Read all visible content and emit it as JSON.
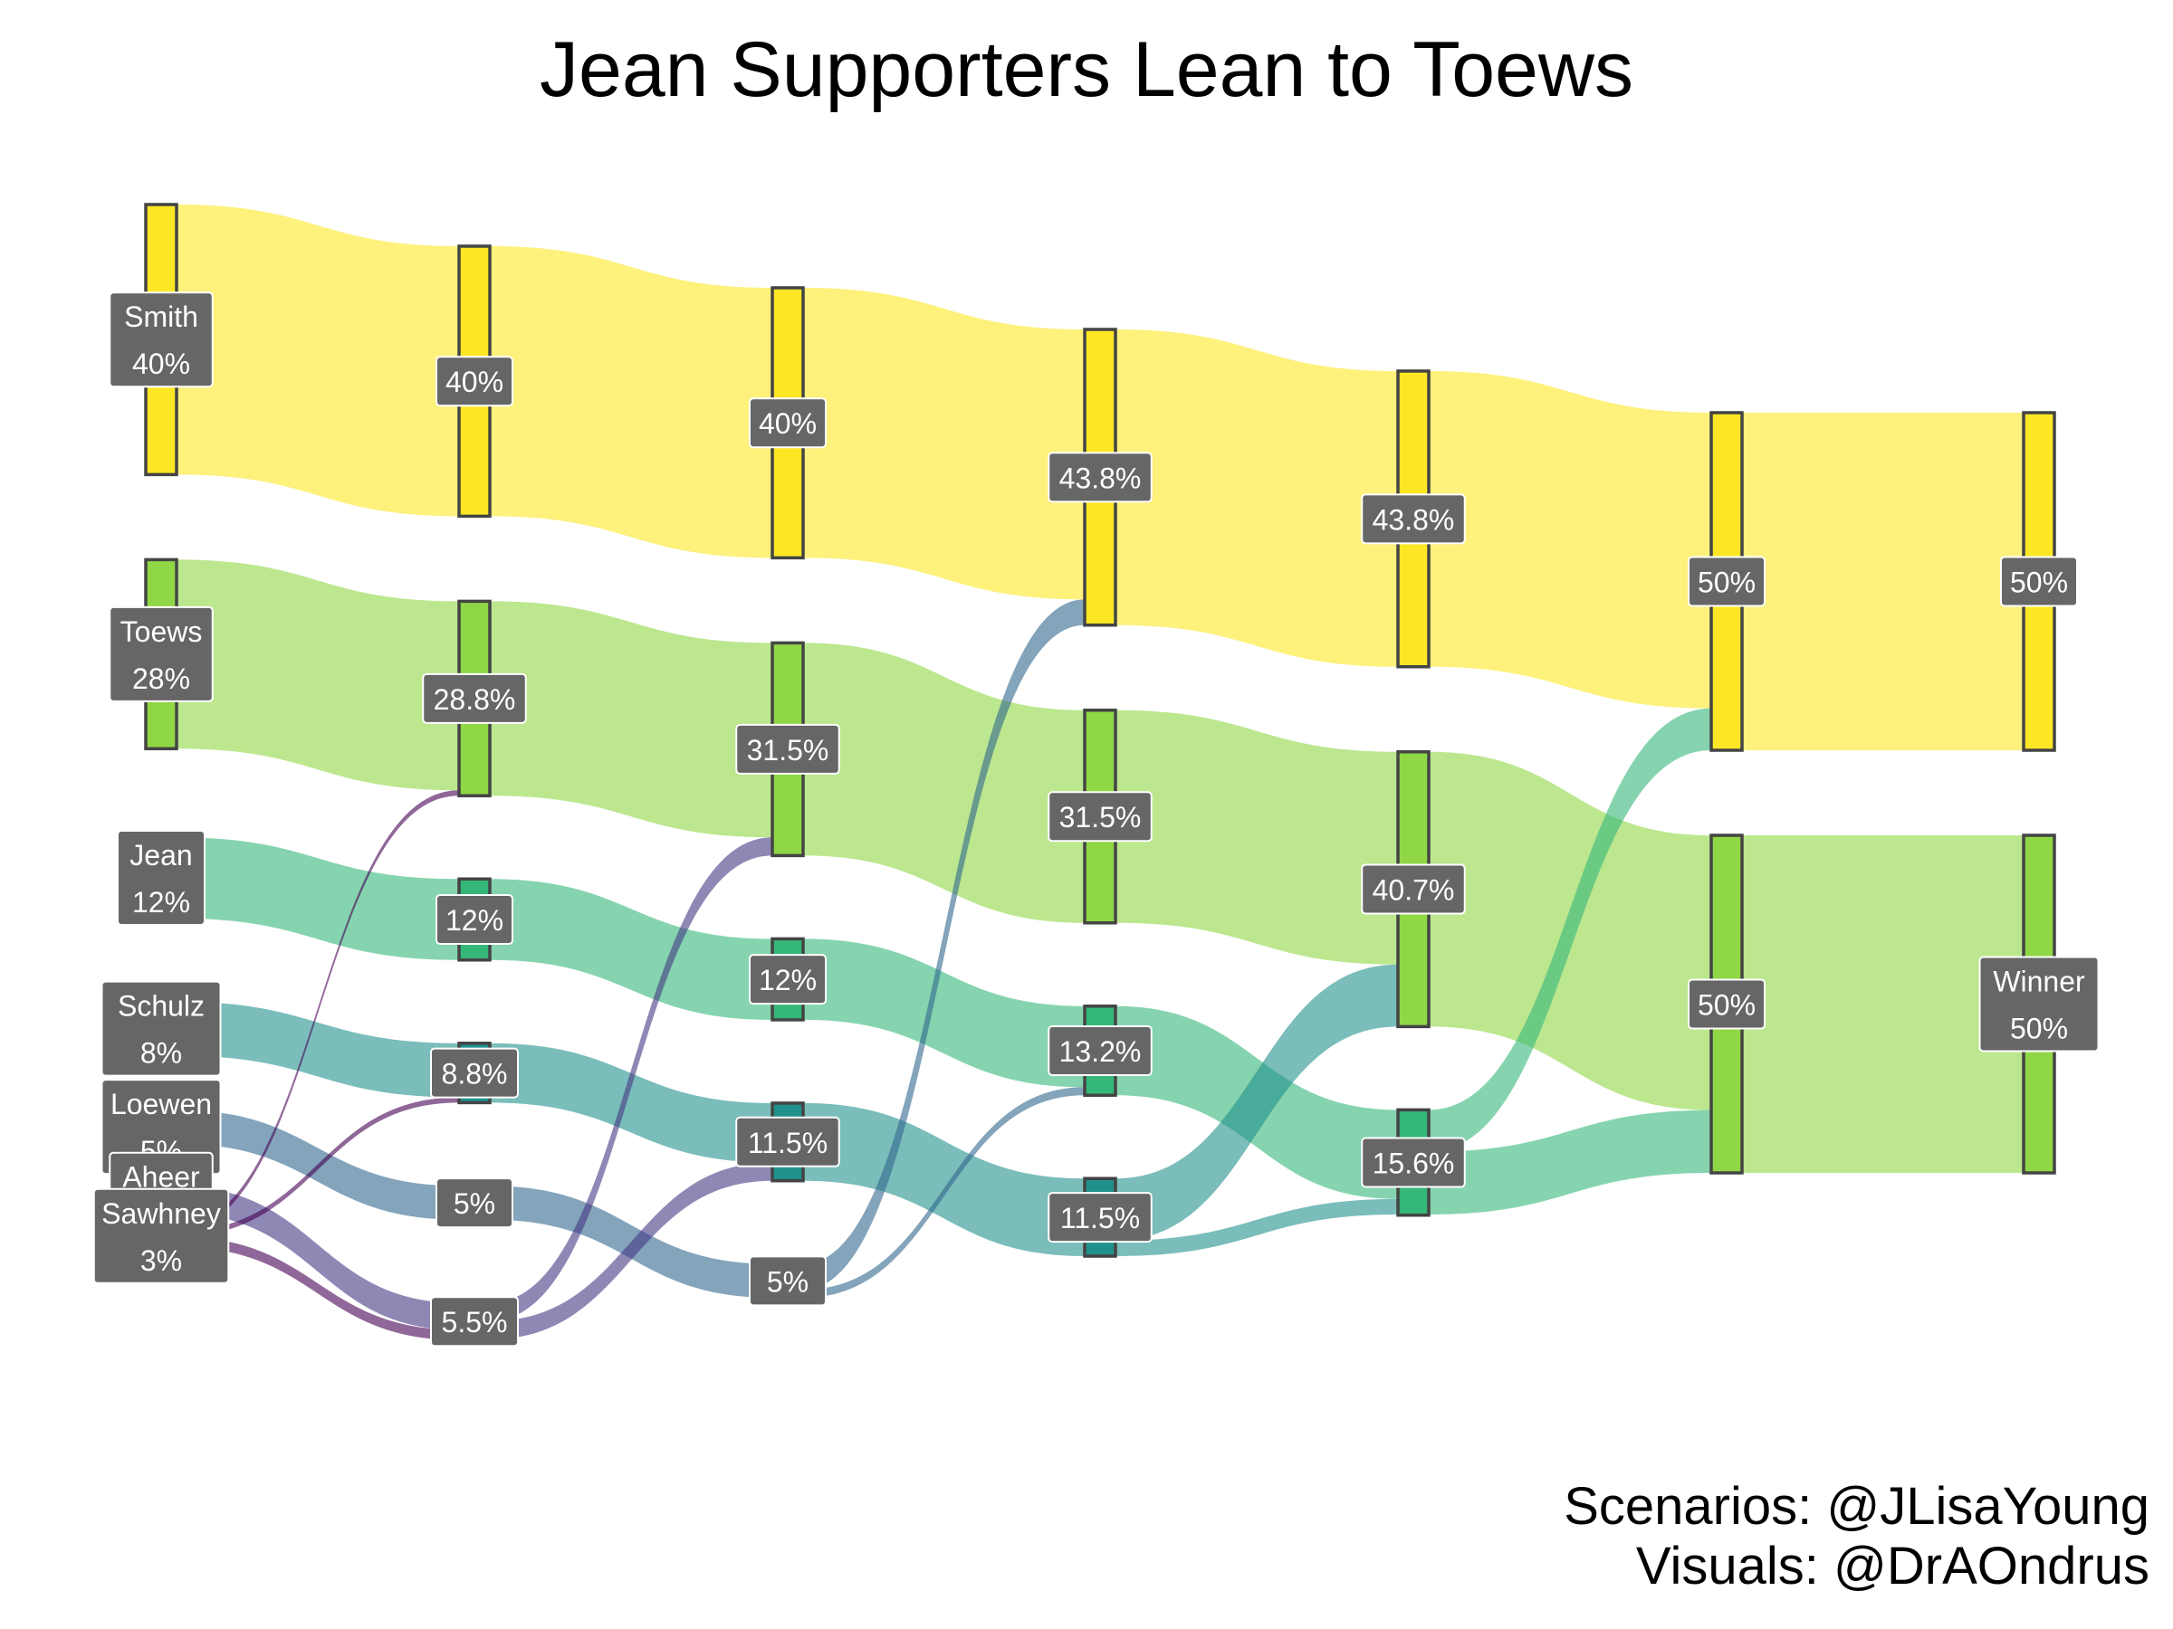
{
  "title": "Jean Supporters Lean to Toews",
  "credits": [
    "Scenarios: @JLisaYoung",
    "Visuals: @DrAOndrus"
  ],
  "colors": {
    "Smith": "#fde725",
    "Toews": "#8fd744",
    "Jean": "#35b779",
    "Schulz": "#21918c",
    "Loewen": "#31688e",
    "Aheer": "#443983",
    "Sawhney": "#440154",
    "label_bg": "#666666",
    "node_border": "#444444"
  },
  "chart_data": {
    "type": "sankey",
    "title": "Jean Supporters Lean to Toews",
    "stages": 7,
    "candidates": [
      "Smith",
      "Toews",
      "Jean",
      "Schulz",
      "Loewen",
      "Aheer",
      "Sawhney"
    ],
    "nodes": [
      {
        "id": "s1_Smith",
        "stage": 1,
        "candidate": "Smith",
        "value": 40,
        "label": "40%",
        "name": "Smith"
      },
      {
        "id": "s1_Toews",
        "stage": 1,
        "candidate": "Toews",
        "value": 28,
        "label": "28%",
        "name": "Toews"
      },
      {
        "id": "s1_Jean",
        "stage": 1,
        "candidate": "Jean",
        "value": 12,
        "label": "12%",
        "name": "Jean"
      },
      {
        "id": "s1_Schulz",
        "stage": 1,
        "candidate": "Schulz",
        "value": 8,
        "label": "8%",
        "name": "Schulz"
      },
      {
        "id": "s1_Loewen",
        "stage": 1,
        "candidate": "Loewen",
        "value": 5,
        "label": "5%",
        "name": "Loewen"
      },
      {
        "id": "s1_Aheer",
        "stage": 1,
        "candidate": "Aheer",
        "value": 4,
        "label": "4%",
        "name": "Aheer"
      },
      {
        "id": "s1_Sawhney",
        "stage": 1,
        "candidate": "Sawhney",
        "value": 3,
        "label": "3%",
        "name": "Sawhney"
      },
      {
        "id": "s2_Smith",
        "stage": 2,
        "candidate": "Smith",
        "value": 40,
        "label": "40%"
      },
      {
        "id": "s2_Toews",
        "stage": 2,
        "candidate": "Toews",
        "value": 28.8,
        "label": "28.8%"
      },
      {
        "id": "s2_Jean",
        "stage": 2,
        "candidate": "Jean",
        "value": 12,
        "label": "12%"
      },
      {
        "id": "s2_Schulz",
        "stage": 2,
        "candidate": "Schulz",
        "value": 8.8,
        "label": "8.8%"
      },
      {
        "id": "s2_Loewen",
        "stage": 2,
        "candidate": "Loewen",
        "value": 5,
        "label": "5%"
      },
      {
        "id": "s2_Aheer",
        "stage": 2,
        "candidate": "Aheer",
        "value": 5.5,
        "label": "5.5%"
      },
      {
        "id": "s3_Smith",
        "stage": 3,
        "candidate": "Smith",
        "value": 40,
        "label": "40%"
      },
      {
        "id": "s3_Toews",
        "stage": 3,
        "candidate": "Toews",
        "value": 31.5,
        "label": "31.5%"
      },
      {
        "id": "s3_Jean",
        "stage": 3,
        "candidate": "Jean",
        "value": 12,
        "label": "12%"
      },
      {
        "id": "s3_Schulz",
        "stage": 3,
        "candidate": "Schulz",
        "value": 11.5,
        "label": "11.5%"
      },
      {
        "id": "s3_Loewen",
        "stage": 3,
        "candidate": "Loewen",
        "value": 5,
        "label": "5%"
      },
      {
        "id": "s4_Smith",
        "stage": 4,
        "candidate": "Smith",
        "value": 43.8,
        "label": "43.8%"
      },
      {
        "id": "s4_Toews",
        "stage": 4,
        "candidate": "Toews",
        "value": 31.5,
        "label": "31.5%"
      },
      {
        "id": "s4_Jean",
        "stage": 4,
        "candidate": "Jean",
        "value": 13.2,
        "label": "13.2%"
      },
      {
        "id": "s4_Schulz",
        "stage": 4,
        "candidate": "Schulz",
        "value": 11.5,
        "label": "11.5%"
      },
      {
        "id": "s5_Smith",
        "stage": 5,
        "candidate": "Smith",
        "value": 43.8,
        "label": "43.8%"
      },
      {
        "id": "s5_Toews",
        "stage": 5,
        "candidate": "Toews",
        "value": 40.7,
        "label": "40.7%"
      },
      {
        "id": "s5_Jean",
        "stage": 5,
        "candidate": "Jean",
        "value": 15.6,
        "label": "15.6%"
      },
      {
        "id": "s6_Smith",
        "stage": 6,
        "candidate": "Smith",
        "value": 50,
        "label": "50%"
      },
      {
        "id": "s6_Toews",
        "stage": 6,
        "candidate": "Toews",
        "value": 50,
        "label": "50%"
      },
      {
        "id": "s7_Smith",
        "stage": 7,
        "candidate": "Smith",
        "value": 50,
        "label": "50%"
      },
      {
        "id": "s7_Toews",
        "stage": 7,
        "candidate": "Toews",
        "value": 50,
        "label": "50%",
        "name": "Winner"
      }
    ],
    "links": [
      {
        "source": "s1_Smith",
        "target": "s2_Smith",
        "value": 40
      },
      {
        "source": "s1_Toews",
        "target": "s2_Toews",
        "value": 28
      },
      {
        "source": "s1_Jean",
        "target": "s2_Jean",
        "value": 12
      },
      {
        "source": "s1_Schulz",
        "target": "s2_Schulz",
        "value": 8
      },
      {
        "source": "s1_Loewen",
        "target": "s2_Loewen",
        "value": 5
      },
      {
        "source": "s1_Aheer",
        "target": "s2_Aheer",
        "value": 4
      },
      {
        "source": "s1_Sawhney",
        "target": "s2_Toews",
        "value": 0.8
      },
      {
        "source": "s1_Sawhney",
        "target": "s2_Schulz",
        "value": 0.8
      },
      {
        "source": "s1_Sawhney",
        "target": "s2_Aheer",
        "value": 1.5
      },
      {
        "source": "s2_Smith",
        "target": "s3_Smith",
        "value": 40
      },
      {
        "source": "s2_Toews",
        "target": "s3_Toews",
        "value": 28.8
      },
      {
        "source": "s2_Jean",
        "target": "s3_Jean",
        "value": 12
      },
      {
        "source": "s2_Schulz",
        "target": "s3_Schulz",
        "value": 8.8
      },
      {
        "source": "s2_Loewen",
        "target": "s3_Loewen",
        "value": 5
      },
      {
        "source": "s2_Aheer",
        "target": "s3_Toews",
        "value": 2.7
      },
      {
        "source": "s2_Aheer",
        "target": "s3_Schulz",
        "value": 2.7
      },
      {
        "source": "s3_Smith",
        "target": "s4_Smith",
        "value": 40
      },
      {
        "source": "s3_Toews",
        "target": "s4_Toews",
        "value": 31.5
      },
      {
        "source": "s3_Jean",
        "target": "s4_Jean",
        "value": 12
      },
      {
        "source": "s3_Schulz",
        "target": "s4_Schulz",
        "value": 11.5
      },
      {
        "source": "s3_Loewen",
        "target": "s4_Smith",
        "value": 3.8
      },
      {
        "source": "s3_Loewen",
        "target": "s4_Jean",
        "value": 1.2
      },
      {
        "source": "s4_Smith",
        "target": "s5_Smith",
        "value": 43.8
      },
      {
        "source": "s4_Toews",
        "target": "s5_Toews",
        "value": 31.5
      },
      {
        "source": "s4_Jean",
        "target": "s5_Jean",
        "value": 13.2
      },
      {
        "source": "s4_Schulz",
        "target": "s5_Toews",
        "value": 9.2
      },
      {
        "source": "s4_Schulz",
        "target": "s5_Jean",
        "value": 2.3
      },
      {
        "source": "s5_Smith",
        "target": "s6_Smith",
        "value": 43.8
      },
      {
        "source": "s5_Toews",
        "target": "s6_Toews",
        "value": 40.7
      },
      {
        "source": "s5_Jean",
        "target": "s6_Smith",
        "value": 6.2
      },
      {
        "source": "s5_Jean",
        "target": "s6_Toews",
        "value": 9.3
      },
      {
        "source": "s6_Smith",
        "target": "s7_Smith",
        "value": 50
      },
      {
        "source": "s6_Toews",
        "target": "s7_Toews",
        "value": 50
      }
    ]
  }
}
